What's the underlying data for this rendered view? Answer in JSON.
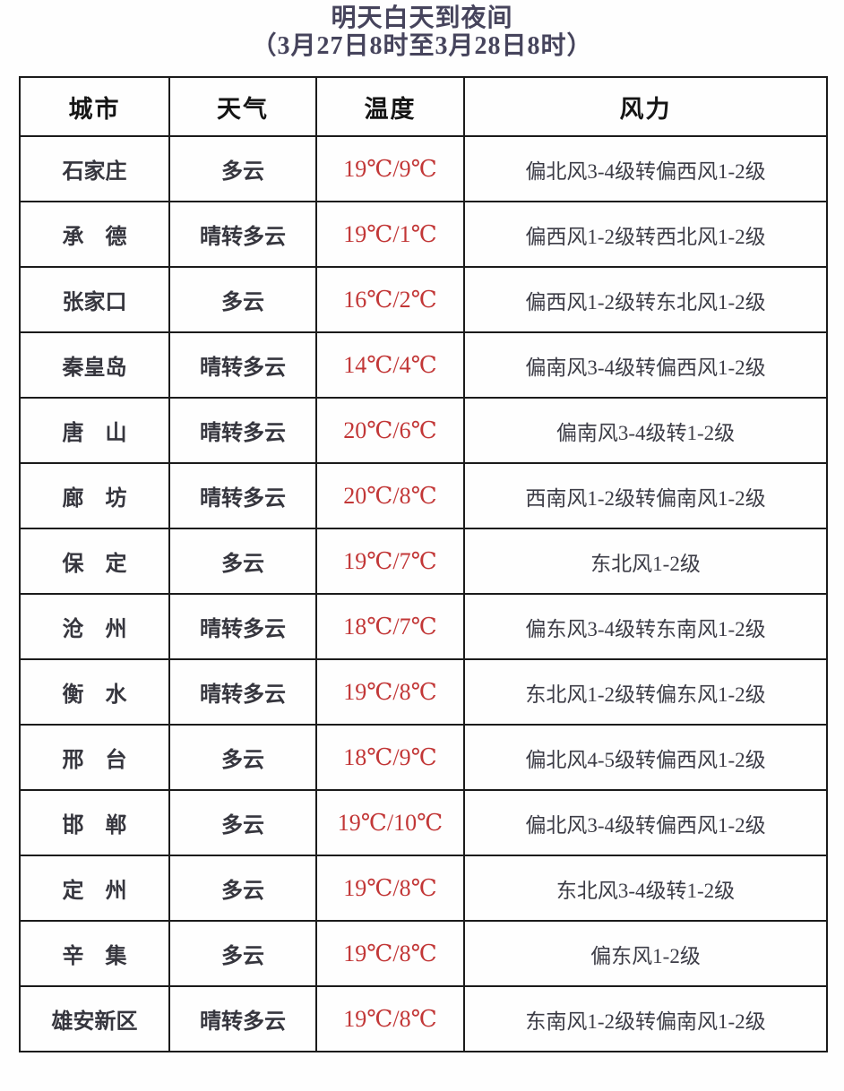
{
  "title": {
    "line1": "明天白天到夜间",
    "line2": "（3月27日8时至3月28日8时）"
  },
  "colors": {
    "title_text": "#46445c",
    "temperature_text": "#c23737",
    "body_text": "#36363e",
    "border": "#1b1b1b",
    "background": "#fefefe"
  },
  "table": {
    "headers": [
      "城市",
      "天气",
      "温度",
      "风力"
    ],
    "rows": [
      {
        "city": "石家庄",
        "weather": "多云",
        "temperature": "19℃/9℃",
        "wind": "偏北风3-4级转偏西风1-2级"
      },
      {
        "city": "承　德",
        "weather": "晴转多云",
        "temperature": "19℃/1℃",
        "wind": "偏西风1-2级转西北风1-2级"
      },
      {
        "city": "张家口",
        "weather": "多云",
        "temperature": "16℃/2℃",
        "wind": "偏西风1-2级转东北风1-2级"
      },
      {
        "city": "秦皇岛",
        "weather": "晴转多云",
        "temperature": "14℃/4℃",
        "wind": "偏南风3-4级转偏西风1-2级"
      },
      {
        "city": "唐　山",
        "weather": "晴转多云",
        "temperature": "20℃/6℃",
        "wind": "偏南风3-4级转1-2级"
      },
      {
        "city": "廊　坊",
        "weather": "晴转多云",
        "temperature": "20℃/8℃",
        "wind": "西南风1-2级转偏南风1-2级"
      },
      {
        "city": "保　定",
        "weather": "多云",
        "temperature": "19℃/7℃",
        "wind": "东北风1-2级"
      },
      {
        "city": "沧　州",
        "weather": "晴转多云",
        "temperature": "18℃/7℃",
        "wind": "偏东风3-4级转东南风1-2级"
      },
      {
        "city": "衡　水",
        "weather": "晴转多云",
        "temperature": "19℃/8℃",
        "wind": "东北风1-2级转偏东风1-2级"
      },
      {
        "city": "邢　台",
        "weather": "多云",
        "temperature": "18℃/9℃",
        "wind": "偏北风4-5级转偏西风1-2级"
      },
      {
        "city": "邯　郸",
        "weather": "多云",
        "temperature": "19℃/10℃",
        "wind": "偏北风3-4级转偏西风1-2级"
      },
      {
        "city": "定　州",
        "weather": "多云",
        "temperature": "19℃/8℃",
        "wind": "东北风3-4级转1-2级"
      },
      {
        "city": "辛　集",
        "weather": "多云",
        "temperature": "19℃/8℃",
        "wind": "偏东风1-2级"
      },
      {
        "city": "雄安新区",
        "weather": "晴转多云",
        "temperature": "19℃/8℃",
        "wind": "东南风1-2级转偏南风1-2级"
      }
    ]
  }
}
